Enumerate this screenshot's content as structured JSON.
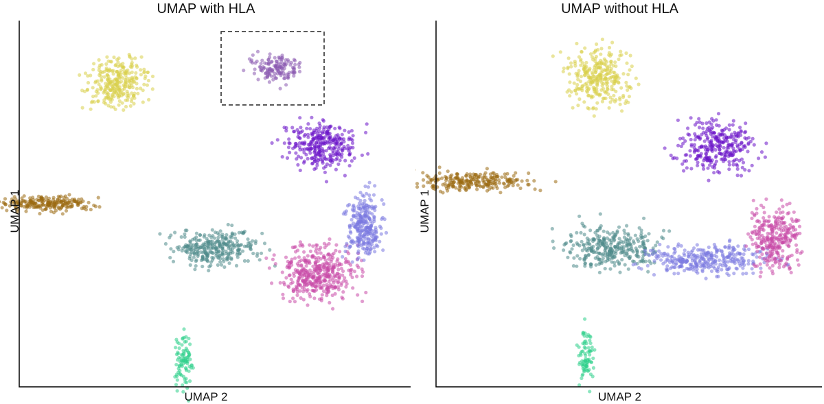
{
  "chart_data": [
    {
      "type": "scatter",
      "title": "UMAP with HLA",
      "xlabel": "UMAP 2",
      "ylabel": "UMAP 1",
      "xticks": [],
      "yticks": [],
      "grid": false,
      "legend": "none",
      "annotation": "dashed rectangle around small upper-right cluster",
      "clusters": [
        {
          "x_center": 0.25,
          "y_center": 0.83,
          "color": "#d8d04a"
        },
        {
          "x_center": 0.66,
          "y_center": 0.87,
          "color": "#8a5ab0"
        },
        {
          "x_center": 0.07,
          "y_center": 0.5,
          "color": "#9a6a10"
        },
        {
          "x_center": 0.5,
          "y_center": 0.38,
          "color": "#4f8a8a"
        },
        {
          "x_center": 0.76,
          "y_center": 0.31,
          "color": "#c84aa8"
        },
        {
          "x_center": 0.88,
          "y_center": 0.44,
          "color": "#7a78e0"
        },
        {
          "x_center": 0.77,
          "y_center": 0.66,
          "color": "#6a12c8"
        },
        {
          "x_center": 0.42,
          "y_center": 0.07,
          "color": "#2ecf8a"
        }
      ]
    },
    {
      "type": "scatter",
      "title": "UMAP without HLA",
      "xlabel": "UMAP 2",
      "ylabel": "UMAP 1",
      "xticks": [],
      "yticks": [],
      "grid": false,
      "legend": "none",
      "clusters": [
        {
          "x_center": 0.42,
          "y_center": 0.84,
          "color": "#d8d04a"
        },
        {
          "x_center": 0.1,
          "y_center": 0.56,
          "color": "#9a6a10"
        },
        {
          "x_center": 0.46,
          "y_center": 0.38,
          "color": "#4f8a8a"
        },
        {
          "x_center": 0.7,
          "y_center": 0.35,
          "color": "#7a78e0"
        },
        {
          "x_center": 0.88,
          "y_center": 0.41,
          "color": "#c84aa8"
        },
        {
          "x_center": 0.73,
          "y_center": 0.66,
          "color": "#6a12c8"
        },
        {
          "x_center": 0.39,
          "y_center": 0.08,
          "color": "#2ecf8a"
        }
      ]
    }
  ]
}
